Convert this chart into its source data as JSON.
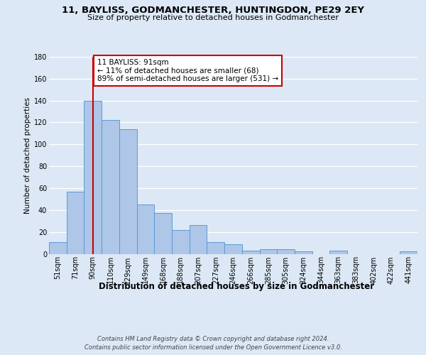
{
  "title1": "11, BAYLISS, GODMANCHESTER, HUNTINGDON, PE29 2EY",
  "title2": "Size of property relative to detached houses in Godmanchester",
  "xlabel": "Distribution of detached houses by size in Godmanchester",
  "ylabel": "Number of detached properties",
  "categories": [
    "51sqm",
    "71sqm",
    "90sqm",
    "110sqm",
    "129sqm",
    "149sqm",
    "168sqm",
    "188sqm",
    "207sqm",
    "227sqm",
    "246sqm",
    "266sqm",
    "285sqm",
    "305sqm",
    "324sqm",
    "344sqm",
    "363sqm",
    "383sqm",
    "402sqm",
    "422sqm",
    "441sqm"
  ],
  "values": [
    11,
    57,
    140,
    122,
    114,
    45,
    37,
    22,
    26,
    11,
    9,
    3,
    4,
    4,
    2,
    0,
    3,
    0,
    0,
    0,
    2
  ],
  "bar_color": "#aec6e8",
  "bar_edge_color": "#5b9bd5",
  "vline_x_index": 2,
  "vline_color": "#cc0000",
  "annotation_text": "11 BAYLISS: 91sqm\n← 11% of detached houses are smaller (68)\n89% of semi-detached houses are larger (531) →",
  "annotation_box_color": "#ffffff",
  "annotation_box_edge": "#cc0000",
  "ylim": [
    0,
    180
  ],
  "yticks": [
    0,
    20,
    40,
    60,
    80,
    100,
    120,
    140,
    160,
    180
  ],
  "footer": "Contains HM Land Registry data © Crown copyright and database right 2024.\nContains public sector information licensed under the Open Government Licence v3.0.",
  "background_color": "#dce8f5",
  "title_fontsize": 9.5,
  "subtitle_fontsize": 8,
  "ylabel_fontsize": 7.5,
  "xlabel_fontsize": 8.5,
  "tick_fontsize": 7,
  "footer_fontsize": 6,
  "annotation_fontsize": 7.5
}
